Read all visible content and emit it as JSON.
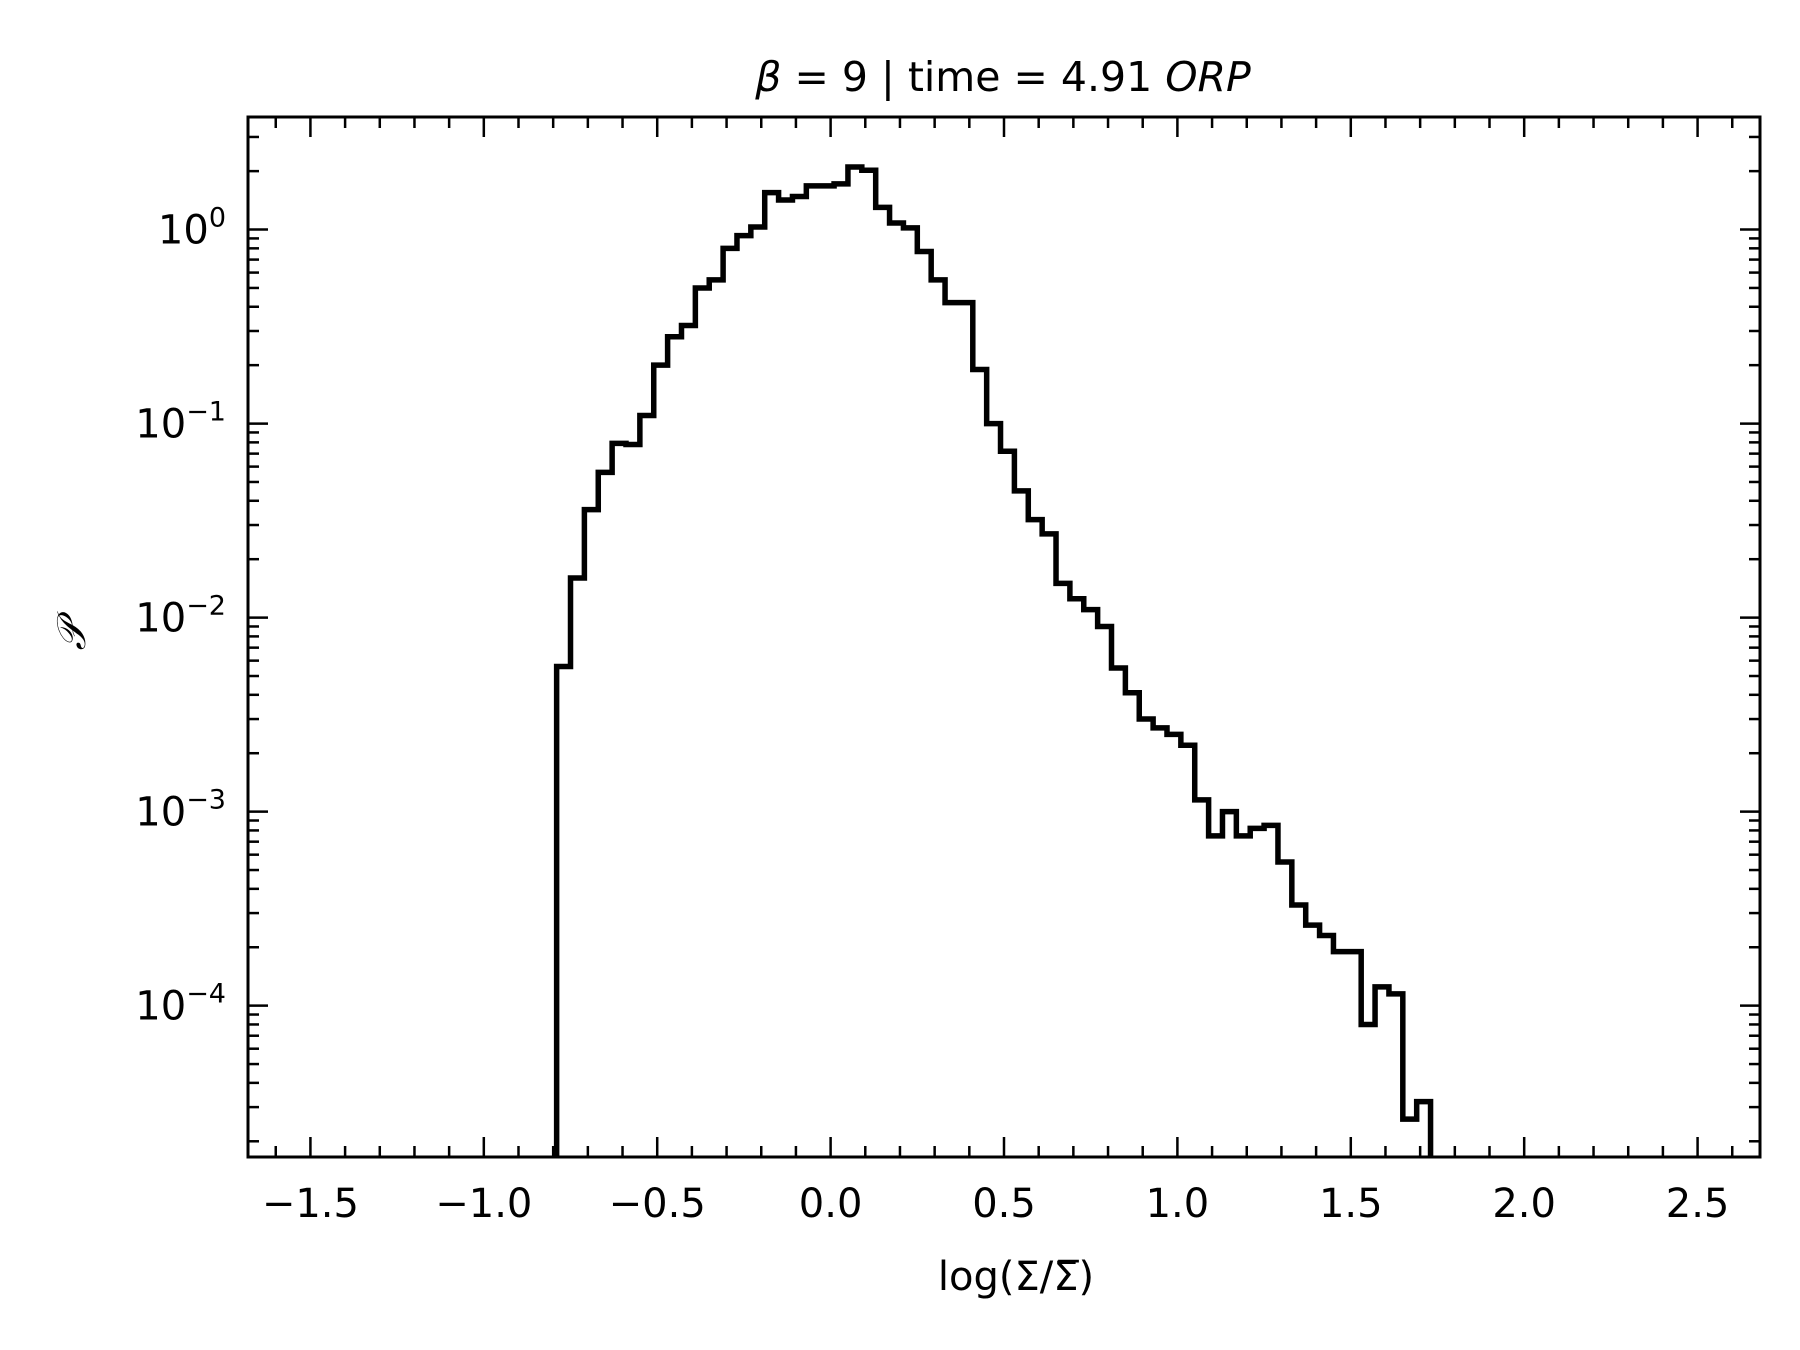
{
  "chart_data": {
    "type": "histogram",
    "title_parts": {
      "prefix": "β",
      "middle": " = 9 | time = 4.91 ",
      "suffix": "ORP"
    },
    "xlabel": "log(Σ/Σ̅)",
    "ylabel": "𝒫",
    "x_scale": "linear",
    "y_scale": "log",
    "xlim": [
      -1.68,
      2.68
    ],
    "ylim_log10": [
      -4.78,
      0.58
    ],
    "xticks": [
      -1.5,
      -1.0,
      -0.5,
      0.0,
      0.5,
      1.0,
      1.5,
      2.0,
      2.5
    ],
    "xtick_labels": [
      "−1.5",
      "−1.0",
      "−0.5",
      "0.0",
      "0.5",
      "1.0",
      "1.5",
      "2.0",
      "2.5"
    ],
    "yticks_log10": [
      0,
      -1,
      -2,
      -3,
      -4
    ],
    "ytick_labels": [
      {
        "base": "10",
        "exp": "0"
      },
      {
        "base": "10",
        "exp": "−1"
      },
      {
        "base": "10",
        "exp": "−2"
      },
      {
        "base": "10",
        "exp": "−3"
      },
      {
        "base": "10",
        "exp": "−4"
      }
    ],
    "grid": false,
    "legend": "none",
    "color": "#000000",
    "bin_start": -0.79,
    "bin_width": 0.04,
    "series": [
      {
        "values": [
          0.0056,
          0.016,
          0.036,
          0.056,
          0.079,
          0.078,
          0.11,
          0.2,
          0.28,
          0.32,
          0.5,
          0.55,
          0.8,
          0.93,
          1.03,
          1.55,
          1.42,
          1.48,
          1.68,
          1.68,
          1.72,
          2.1,
          2.02,
          1.3,
          1.08,
          1.02,
          0.77,
          0.55,
          0.42,
          0.42,
          0.19,
          0.1,
          0.072,
          0.045,
          0.032,
          0.027,
          0.015,
          0.0125,
          0.011,
          0.009,
          0.0055,
          0.0041,
          0.003,
          0.0027,
          0.0025,
          0.0022,
          0.00115,
          0.00075,
          0.001,
          0.00075,
          0.00082,
          0.00085,
          0.00055,
          0.00033,
          0.00026,
          0.00023,
          0.00019,
          0.00019,
          8e-05,
          0.000125,
          0.000115,
          2.6e-05,
          3.2e-05
        ]
      }
    ]
  }
}
